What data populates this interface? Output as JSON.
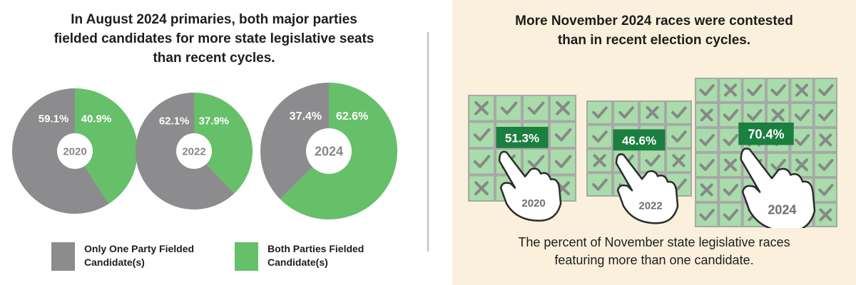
{
  "left_panel": {
    "title_lines": [
      "In August 2024 primaries, both major parties",
      "fielded candidates for more state legislative seats",
      "than recent cycles."
    ],
    "legend": [
      {
        "label_lines": [
          "Only One Party Fielded",
          "Candidate(s)"
        ],
        "color": "#8c8c8e"
      },
      {
        "label_lines": [
          "Both Parties Fielded",
          "Candidate(s)"
        ],
        "color": "#66bf69"
      }
    ]
  },
  "right_panel": {
    "title_lines": [
      "More November 2024 races were contested",
      "than in recent election cycles."
    ],
    "caption_lines": [
      "The percent of November state legislative races",
      "featuring more than one candidate."
    ]
  },
  "chart_data": [
    {
      "type": "pie",
      "title": "In August 2024 primaries, both major parties fielded candidates for more state legislative seats than recent cycles.",
      "legend_placement": "bottom",
      "categories": [
        "Only One Party Fielded Candidate(s)",
        "Both Parties Fielded Candidate(s)"
      ],
      "colors": [
        "#8c8c8e",
        "#66bf69"
      ],
      "charts": [
        {
          "year": "2020",
          "values": [
            59.1,
            40.9
          ],
          "labels": [
            "59.1%",
            "40.9%"
          ]
        },
        {
          "year": "2022",
          "values": [
            62.1,
            37.9
          ],
          "labels": [
            "62.1%",
            "37.9%"
          ]
        },
        {
          "year": "2024",
          "values": [
            37.4,
            62.6
          ],
          "labels": [
            "37.4%",
            "62.6%"
          ]
        }
      ]
    },
    {
      "type": "bar",
      "title": "More November 2024 races were contested than in recent election cycles.",
      "categories": [
        "2020",
        "2022",
        "2024"
      ],
      "values": [
        51.3,
        46.6,
        70.4
      ],
      "labels": [
        "51.3%",
        "46.6%",
        "70.4%"
      ],
      "colors": {
        "bar_label_bg": "#1a7f3f",
        "tile": "#a8dcaa",
        "grid_line": "#a8a8a8",
        "mark": "#888888"
      }
    }
  ]
}
